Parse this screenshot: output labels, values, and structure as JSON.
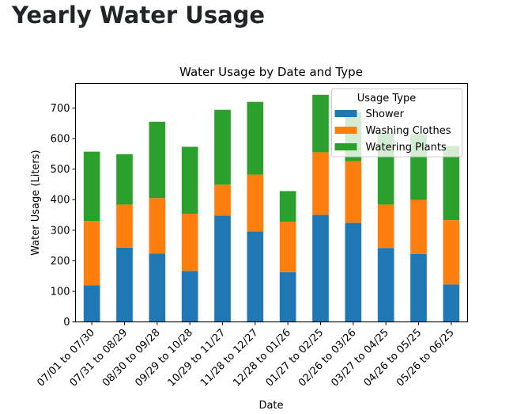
{
  "page": {
    "title": "Yearly Water Usage"
  },
  "chart_data": {
    "type": "bar",
    "stacked": true,
    "title": "Water Usage by Date and Type",
    "xlabel": "Date",
    "ylabel": "Water Usage (Liters)",
    "ylim": [
      0,
      780
    ],
    "yticks": [
      0,
      100,
      200,
      300,
      400,
      500,
      600,
      700
    ],
    "grid": false,
    "legend": {
      "title": "Usage Type",
      "placement": "top-right"
    },
    "categories": [
      "07/01 to 07/30",
      "07/31 to 08/29",
      "08/30 to 09/28",
      "09/29 to 10/28",
      "10/29 to 11/27",
      "11/28 to 12/27",
      "12/28 to 01/26",
      "01/27 to 02/25",
      "02/26 to 03/26",
      "03/27 to 04/25",
      "04/26 to 05/25",
      "05/26 to 06/25"
    ],
    "series": [
      {
        "name": "Shower",
        "color": "#1f77b4",
        "values": [
          120,
          243,
          224,
          167,
          348,
          296,
          163,
          350,
          324,
          242,
          222,
          123
        ]
      },
      {
        "name": "Washing Clothes",
        "color": "#ff7f0e",
        "values": [
          210,
          141,
          181,
          187,
          101,
          186,
          165,
          205,
          202,
          142,
          177,
          210
        ]
      },
      {
        "name": "Watering Plants",
        "color": "#2ca02c",
        "values": [
          227,
          165,
          250,
          219,
          245,
          238,
          100,
          188,
          160,
          233,
          215,
          243
        ]
      }
    ]
  }
}
